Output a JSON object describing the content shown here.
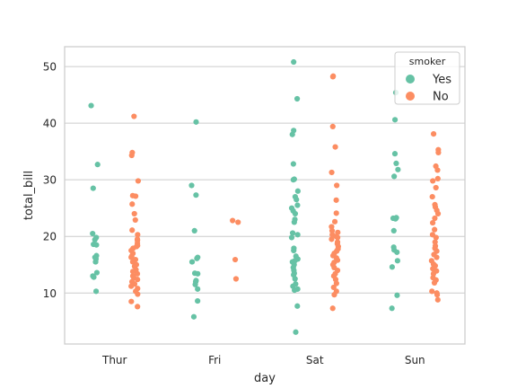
{
  "chart_data": {
    "type": "scatter",
    "title": "",
    "xlabel": "day",
    "ylabel": "total_bill",
    "categories": [
      "Thur",
      "Fri",
      "Sat",
      "Sun"
    ],
    "ylim": [
      1.0,
      53.5
    ],
    "yticks": [
      10,
      20,
      30,
      40,
      50
    ],
    "grid": "horizontal",
    "legend": {
      "title": "smoker",
      "placement": "top-right"
    },
    "colors": {
      "Yes": "#66c2a5",
      "No": "#fc8d62",
      "grid": "#cccccc",
      "frame": "#cccccc"
    },
    "series": [
      {
        "name": "Yes",
        "points": {
          "Thur": [
            43.1,
            32.7,
            28.5,
            20.5,
            19.8,
            19.4,
            18.6,
            18.5,
            16.6,
            16.3,
            16.0,
            15.5,
            13.6,
            13.0,
            12.8,
            10.3
          ],
          "Fri": [
            40.2,
            29.0,
            27.3,
            21.0,
            16.3,
            16.1,
            15.5,
            13.5,
            13.4,
            12.2,
            12.0,
            11.5,
            10.7,
            8.6,
            5.8
          ],
          "Sat": [
            50.8,
            44.3,
            38.7,
            38.0,
            32.8,
            30.1,
            30.0,
            28.0,
            27.0,
            26.5,
            25.5,
            25.0,
            24.5,
            24.0,
            23.0,
            22.5,
            20.6,
            20.3,
            19.8,
            17.9,
            17.5,
            16.5,
            16.0,
            15.7,
            15.5,
            15.0,
            14.5,
            14.0,
            13.5,
            13.2,
            12.5,
            11.6,
            11.2,
            10.7,
            10.5,
            7.7,
            3.1
          ],
          "Sun": [
            45.4,
            40.6,
            34.6,
            32.9,
            31.8,
            30.6,
            23.3,
            23.2,
            23.1,
            21.0,
            18.1,
            17.6,
            17.2,
            15.7,
            14.6,
            9.6,
            7.3
          ]
        }
      },
      {
        "name": "No",
        "points": {
          "Thur": [
            41.2,
            34.8,
            34.3,
            29.8,
            27.2,
            27.1,
            25.7,
            24.0,
            22.9,
            21.1,
            20.3,
            19.5,
            19.3,
            18.8,
            18.4,
            18.2,
            17.9,
            17.5,
            17.0,
            16.5,
            16.3,
            15.9,
            15.5,
            15.0,
            14.7,
            14.1,
            13.8,
            13.4,
            13.0,
            12.7,
            12.4,
            12.0,
            11.6,
            11.2,
            10.8,
            10.3,
            9.8,
            8.5,
            7.6
          ],
          "Fri": [
            22.8,
            22.5,
            15.9,
            12.5
          ],
          "Sat": [
            48.3,
            48.2,
            39.4,
            35.8,
            31.3,
            29.0,
            26.4,
            24.1,
            22.6,
            21.7,
            21.0,
            20.7,
            20.3,
            20.0,
            19.8,
            19.5,
            19.0,
            18.7,
            18.2,
            17.8,
            17.4,
            17.0,
            16.6,
            16.2,
            15.8,
            15.4,
            15.0,
            14.5,
            14.0,
            13.4,
            13.0,
            12.4,
            11.7,
            11.0,
            10.3,
            9.7,
            7.3
          ],
          "Sun": [
            38.1,
            35.3,
            34.8,
            32.4,
            31.7,
            30.2,
            29.8,
            28.6,
            27.0,
            25.6,
            25.2,
            24.6,
            24.0,
            23.2,
            22.4,
            21.2,
            20.3,
            19.8,
            19.0,
            18.3,
            17.9,
            17.4,
            16.8,
            16.3,
            15.7,
            15.1,
            14.8,
            14.3,
            13.9,
            13.4,
            12.7,
            12.3,
            11.8,
            10.3,
            10.0,
            9.7,
            8.8
          ]
        }
      }
    ]
  }
}
